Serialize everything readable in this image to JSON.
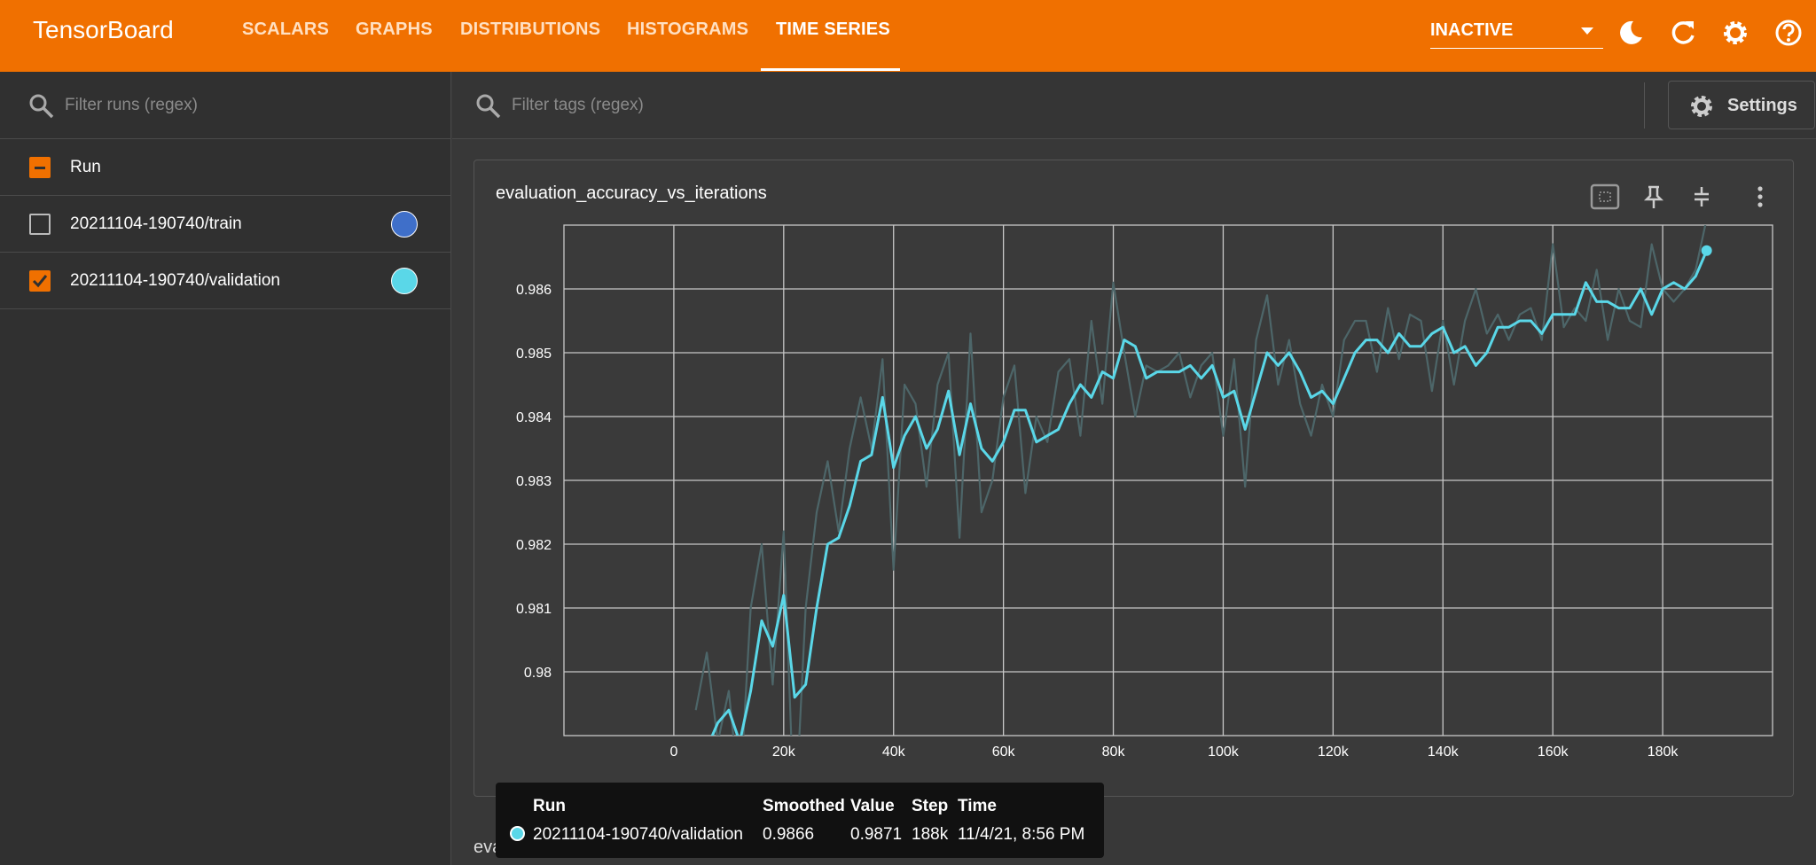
{
  "header": {
    "title": "TensorBoard",
    "nav": [
      "SCALARS",
      "GRAPHS",
      "DISTRIBUTIONS",
      "HISTOGRAMS",
      "TIME SERIES"
    ],
    "reload_mode": "INACTIVE"
  },
  "runs_filter_placeholder": "Filter runs (regex)",
  "runs_header": "Run",
  "runs": [
    {
      "name": "20211104-190740/train",
      "color": "#3f6fc9",
      "checked": false
    },
    {
      "name": "20211104-190740/validation",
      "color": "#5ad7e8",
      "checked": true
    }
  ],
  "tags_filter_placeholder": "Filter tags (regex)",
  "settings_label": "Settings",
  "chart_data": {
    "type": "line",
    "title": "evaluation_accuracy_vs_iterations",
    "x": [
      4000,
      6000,
      8000,
      10000,
      12000,
      14000,
      16000,
      18000,
      20000,
      22000,
      24000,
      26000,
      28000,
      30000,
      32000,
      34000,
      36000,
      38000,
      40000,
      42000,
      44000,
      46000,
      48000,
      50000,
      52000,
      54000,
      56000,
      58000,
      60000,
      62000,
      64000,
      66000,
      68000,
      70000,
      72000,
      74000,
      76000,
      78000,
      80000,
      82000,
      84000,
      86000,
      88000,
      90000,
      92000,
      94000,
      96000,
      98000,
      100000,
      102000,
      104000,
      106000,
      108000,
      110000,
      112000,
      114000,
      116000,
      118000,
      120000,
      122000,
      124000,
      126000,
      128000,
      130000,
      132000,
      134000,
      136000,
      138000,
      140000,
      142000,
      144000,
      146000,
      148000,
      150000,
      152000,
      154000,
      156000,
      158000,
      160000,
      162000,
      164000,
      166000,
      168000,
      170000,
      172000,
      174000,
      176000,
      178000,
      180000,
      182000,
      184000,
      186000,
      188000
    ],
    "series": [
      {
        "name": "Value",
        "color": "#4d6669",
        "values": [
          0.9794,
          0.9803,
          0.9789,
          0.9797,
          0.978,
          0.981,
          0.982,
          0.9798,
          0.9822,
          0.9775,
          0.981,
          0.9825,
          0.9833,
          0.9822,
          0.9835,
          0.9843,
          0.9835,
          0.9849,
          0.9816,
          0.9845,
          0.9842,
          0.9829,
          0.9845,
          0.985,
          0.9821,
          0.9853,
          0.9825,
          0.983,
          0.9843,
          0.9848,
          0.9828,
          0.984,
          0.9836,
          0.9847,
          0.9849,
          0.9837,
          0.9855,
          0.9842,
          0.9861,
          0.985,
          0.984,
          0.9848,
          0.9847,
          0.9848,
          0.985,
          0.9843,
          0.9848,
          0.985,
          0.9837,
          0.9849,
          0.9829,
          0.9852,
          0.9859,
          0.9845,
          0.9852,
          0.9842,
          0.9837,
          0.9845,
          0.984,
          0.9852,
          0.9855,
          0.9855,
          0.9847,
          0.9857,
          0.9849,
          0.9856,
          0.9855,
          0.9844,
          0.9855,
          0.9845,
          0.9855,
          0.986,
          0.9853,
          0.9856,
          0.9852,
          0.9856,
          0.9857,
          0.9852,
          0.9867,
          0.9854,
          0.9857,
          0.9855,
          0.9863,
          0.9852,
          0.986,
          0.9855,
          0.9854,
          0.9867,
          0.986,
          0.9858,
          0.986,
          0.9863,
          0.9871
        ]
      },
      {
        "name": "Smoothed",
        "color": "#5ad7e8",
        "values": [
          0.9789,
          0.9788,
          0.9792,
          0.9794,
          0.9789,
          0.9797,
          0.9808,
          0.9804,
          0.9812,
          0.9796,
          0.9798,
          0.981,
          0.982,
          0.9821,
          0.9826,
          0.9833,
          0.9834,
          0.9843,
          0.9832,
          0.9837,
          0.984,
          0.9835,
          0.9838,
          0.9844,
          0.9834,
          0.9842,
          0.9835,
          0.9833,
          0.9836,
          0.9841,
          0.9841,
          0.9836,
          0.9837,
          0.9838,
          0.9842,
          0.9845,
          0.9843,
          0.9847,
          0.9846,
          0.9852,
          0.9851,
          0.9846,
          0.9847,
          0.9847,
          0.9847,
          0.9848,
          0.9846,
          0.9848,
          0.9843,
          0.9844,
          0.9838,
          0.9844,
          0.985,
          0.9848,
          0.985,
          0.9847,
          0.9843,
          0.9844,
          0.9842,
          0.9846,
          0.985,
          0.9852,
          0.9852,
          0.985,
          0.9853,
          0.9851,
          0.9851,
          0.9853,
          0.9854,
          0.985,
          0.9851,
          0.9848,
          0.985,
          0.9854,
          0.9854,
          0.9855,
          0.9855,
          0.9853,
          0.9856,
          0.9856,
          0.9856,
          0.9861,
          0.9858,
          0.9858,
          0.9857,
          0.9857,
          0.986,
          0.9856,
          0.986,
          0.9861,
          0.986,
          0.9862,
          0.9866
        ]
      }
    ],
    "xlim": [
      -20000,
      200000
    ],
    "xticks": [
      0,
      {
        "value": 20000,
        "label": "20k"
      },
      {
        "value": 40000,
        "label": "40k"
      },
      {
        "value": 60000,
        "label": "60k"
      },
      {
        "value": 80000,
        "label": "80k"
      },
      {
        "value": 100000,
        "label": "100k"
      },
      {
        "value": 120000,
        "label": "120k"
      },
      {
        "value": 140000,
        "label": "140k"
      },
      {
        "value": 160000,
        "label": "160k"
      },
      {
        "value": 180000,
        "label": "180k"
      }
    ],
    "ylim": [
      0.979,
      0.987
    ],
    "yticks": [
      0.98,
      0.981,
      0.982,
      0.983,
      0.984,
      0.985,
      0.986
    ],
    "grid": true
  },
  "tooltip": {
    "run_header": "Run",
    "step_header": "Step",
    "time_header": "Time",
    "row": {
      "run": "20211104-190740/validation",
      "smoothed": "0.9866",
      "value": "0.9871",
      "step": "188k",
      "time": "11/4/21, 8:56 PM"
    }
  },
  "next_card_title": "evaluation_loss_vs_iterations"
}
